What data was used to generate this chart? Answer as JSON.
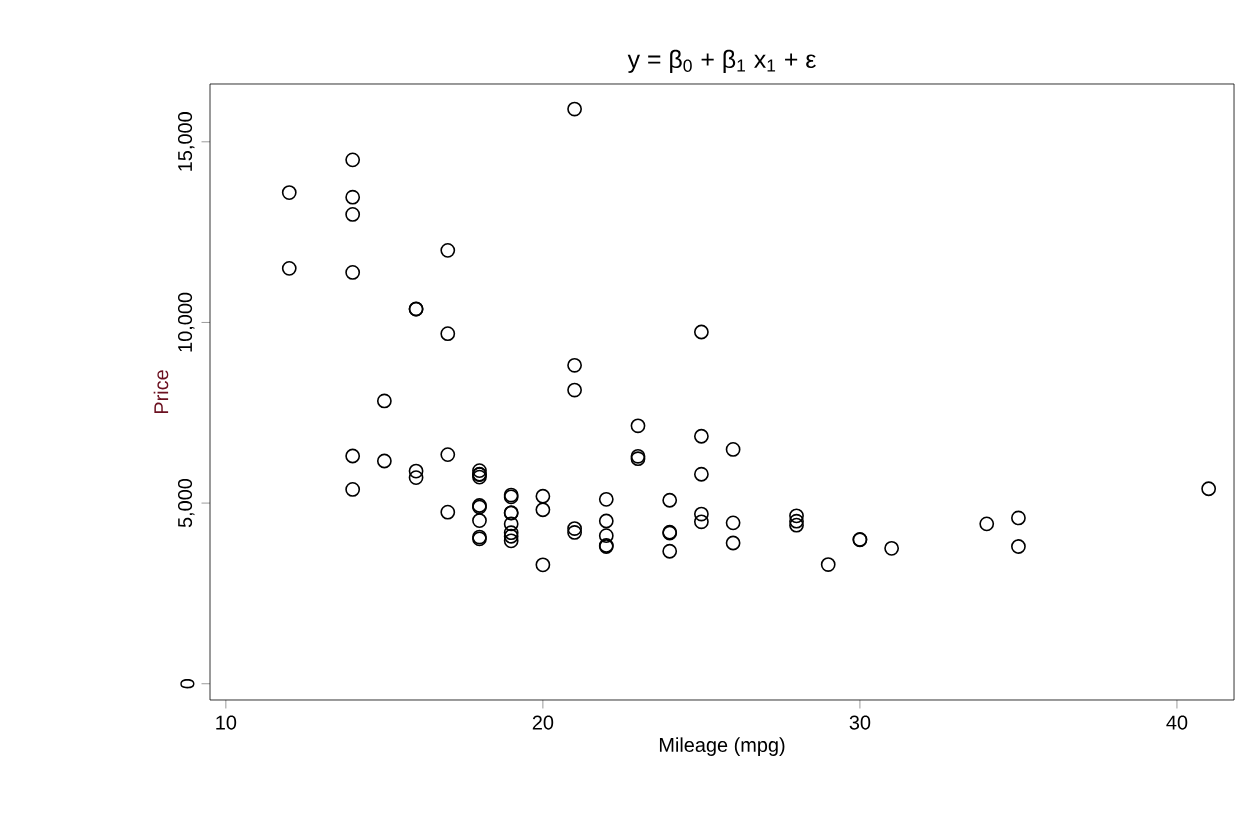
{
  "chart_data": {
    "type": "scatter",
    "title": "y = β$_{0}$ + β$_{1}$ x$_{1}$ + ε",
    "xlabel": "Mileage (mpg)",
    "ylabel": "Price",
    "x": [
      22,
      17,
      22,
      20,
      15,
      18,
      26,
      20,
      16,
      19,
      14,
      14,
      21,
      29,
      16,
      22,
      22,
      24,
      19,
      30,
      18,
      16,
      17,
      28,
      21,
      12,
      12,
      14,
      22,
      14,
      15,
      18,
      14,
      20,
      21,
      19,
      19,
      18,
      19,
      24,
      16,
      28,
      34,
      25,
      26,
      18,
      18,
      18,
      19,
      19,
      19,
      24,
      17,
      23,
      25,
      23,
      35,
      24,
      21,
      21,
      25,
      28,
      30,
      14,
      26,
      35,
      18,
      31,
      18,
      23,
      41,
      25,
      25,
      17
    ],
    "values": [
      4099,
      4749,
      3799,
      4816,
      7827,
      5788,
      4453,
      5189,
      10372,
      4082,
      11385,
      14500,
      15906,
      3299,
      5705,
      4504,
      5104,
      3667,
      3955,
      3984,
      4010,
      5886,
      6342,
      4389,
      4187,
      11497,
      13594,
      13466,
      3829,
      5379,
      6165,
      4516,
      6303,
      3291,
      8814,
      5172,
      4733,
      4890,
      4181,
      4195,
      10371,
      4647,
      4425,
      4482,
      6486,
      4060,
      5798,
      4934,
      5222,
      4723,
      4424,
      4172,
      9690,
      6295,
      9735,
      6229,
      4589,
      5079,
      8129,
      4296,
      5799,
      4499,
      3995,
      12990,
      3895,
      3798,
      5899,
      3748,
      5719,
      7140,
      5397,
      4697,
      6850,
      11995
    ],
    "color": "#000000",
    "marker": "circle",
    "xlim": [
      9.5,
      41.8
    ],
    "ylim": [
      -450,
      16600
    ],
    "xticks": [
      10,
      20,
      30,
      40
    ],
    "yticks": [
      0,
      {
        "value": 5000,
        "label": "5,000"
      },
      {
        "value": 10000,
        "label": "10,000"
      },
      {
        "value": 15000,
        "label": "15,000"
      }
    ]
  }
}
